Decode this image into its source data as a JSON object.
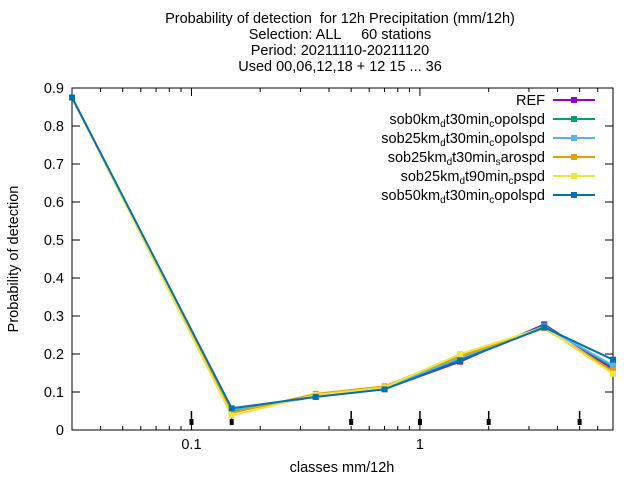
{
  "chart_data": {
    "type": "line",
    "title_lines": [
      "Probability of detection  for 12h Precipitation (mm/12h)",
      "Selection: ALL     60 stations",
      "Period: 20211110-20211120",
      "Used 00,06,12,18 + 12 15 ... 36"
    ],
    "xlabel": "classes mm/12h",
    "ylabel": "Probability of detection",
    "x_scale": "log",
    "xlim": [
      0.03,
      7
    ],
    "ylim": [
      0,
      0.9
    ],
    "x_tick_labels": [
      "0.1",
      "1"
    ],
    "x_tick_values": [
      0.1,
      1
    ],
    "y_ticks": [
      0,
      0.1,
      0.2,
      0.3,
      0.4,
      0.5,
      0.6,
      0.7,
      0.8,
      0.9
    ],
    "y_tick_labels": [
      "0",
      "0.1",
      "0.2",
      "0.3",
      "0.4",
      "0.5",
      "0.6",
      "0.7",
      "0.8",
      "0.9"
    ],
    "legend_position": "top-right",
    "grid": false,
    "x": [
      0.03,
      0.15,
      0.35,
      0.7,
      1.5,
      3.5,
      7
    ],
    "class_marker_x": [
      0.1,
      0.15,
      0.5,
      1,
      2,
      5
    ],
    "series": [
      {
        "name_main": "REF",
        "name_sub": "",
        "name_tail": "",
        "color": "#9400d3",
        "values": [
          0.875,
          0.055,
          0.088,
          0.108,
          0.18,
          0.278,
          0.16
        ]
      },
      {
        "name_main": "sob0km",
        "name_sub": "d",
        "name_tail": "t30min",
        "name_sub2": "c",
        "name_tail2": "opolspd",
        "color": "#009e73",
        "values": [
          0.875,
          0.05,
          0.088,
          0.108,
          0.185,
          0.275,
          0.165
        ]
      },
      {
        "name_main": "sob25km",
        "name_sub": "d",
        "name_tail": "t30min",
        "name_sub2": "c",
        "name_tail2": "opolspd",
        "color": "#56b4e9",
        "values": [
          0.875,
          0.052,
          0.089,
          0.11,
          0.19,
          0.272,
          0.17
        ]
      },
      {
        "name_main": "sob25km",
        "name_sub": "d",
        "name_tail": "t30min",
        "name_sub2": "s",
        "name_tail2": "arospd",
        "color": "#e69f00",
        "values": [
          0.875,
          0.045,
          0.095,
          0.115,
          0.195,
          0.268,
          0.155
        ]
      },
      {
        "name_main": "sob25km",
        "name_sub": "d",
        "name_tail": "t90min",
        "name_sub2": "c",
        "name_tail2": "pspd",
        "color": "#f0e442",
        "values": [
          0.875,
          0.038,
          0.092,
          0.112,
          0.2,
          0.27,
          0.148
        ]
      },
      {
        "name_main": "sob50km",
        "name_sub": "d",
        "name_tail": "t30min",
        "name_sub2": "c",
        "name_tail2": "opolspd",
        "color": "#0072b2",
        "values": [
          0.875,
          0.057,
          0.087,
          0.107,
          0.183,
          0.27,
          0.185
        ]
      }
    ]
  }
}
